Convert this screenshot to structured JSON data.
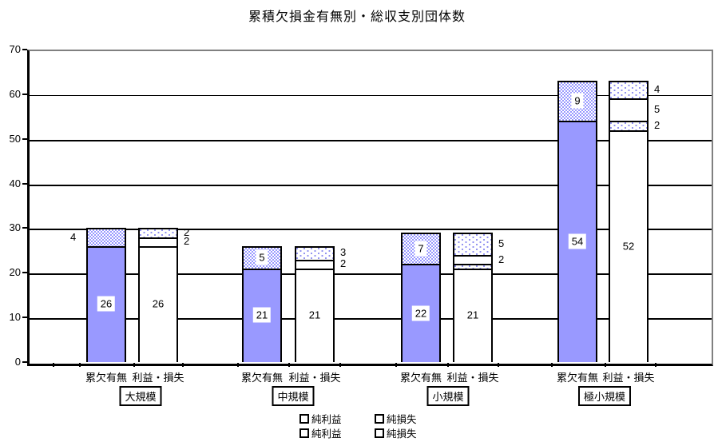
{
  "title": "累積欠損金有無別・総収支別団体数",
  "colors": {
    "bar_solid": "#9999FF",
    "pattern_accent": "#9999FF",
    "axis_line": "#000000",
    "plot_border_light": "#808080",
    "background": "#FFFFFF"
  },
  "legend": {
    "items": [
      {
        "label": "純利益",
        "key": "white-square-icon"
      },
      {
        "label": "純損失",
        "key": "white-square-icon"
      },
      {
        "label": "純利益",
        "key": "white-square-icon"
      },
      {
        "label": "純損失",
        "key": "white-square-icon"
      }
    ]
  },
  "chart_data": {
    "type": "bar",
    "stacked": true,
    "title": "累積欠損金有無別・総収支別団体数",
    "ylim": [
      0,
      70
    ],
    "y_tick_labels": [
      "0",
      "10",
      "20",
      "30",
      "40",
      "50",
      "60",
      "70"
    ],
    "grid": "horizontal",
    "legend_position": "bottom",
    "bar_category_labels": [
      "累欠有無",
      "利益・損失"
    ],
    "groups": [
      {
        "name": "大規模",
        "bars": [
          {
            "axis_label": "累欠有無",
            "total": 30,
            "segments": [
              {
                "value": 26,
                "pattern": "solid",
                "label": "26",
                "label_pos": "inside"
              },
              {
                "value": 4,
                "pattern": "hatch",
                "label": "4",
                "label_pos": "left"
              }
            ]
          },
          {
            "axis_label": "利益・損失",
            "total": 30,
            "segments": [
              {
                "value": 26,
                "pattern": "white",
                "label": "26",
                "label_pos": "inside"
              },
              {
                "value": 0,
                "pattern": "dots"
              },
              {
                "value": 2,
                "pattern": "white",
                "label": "2",
                "label_pos": "right"
              },
              {
                "value": 2,
                "pattern": "dots",
                "label": "2",
                "label_pos": "right"
              }
            ]
          }
        ]
      },
      {
        "name": "中規模",
        "bars": [
          {
            "axis_label": "累欠有無",
            "total": 26,
            "segments": [
              {
                "value": 21,
                "pattern": "solid",
                "label": "21",
                "label_pos": "inside"
              },
              {
                "value": 5,
                "pattern": "hatch",
                "label": "5",
                "label_pos": "inside"
              }
            ]
          },
          {
            "axis_label": "利益・損失",
            "total": 26,
            "segments": [
              {
                "value": 21,
                "pattern": "white",
                "label": "21",
                "label_pos": "inside"
              },
              {
                "value": 0,
                "pattern": "dots"
              },
              {
                "value": 2,
                "pattern": "white",
                "label": "2",
                "label_pos": "right"
              },
              {
                "value": 3,
                "pattern": "dots",
                "label": "3",
                "label_pos": "right"
              }
            ]
          }
        ]
      },
      {
        "name": "小規模",
        "bars": [
          {
            "axis_label": "累欠有無",
            "total": 29,
            "segments": [
              {
                "value": 22,
                "pattern": "solid",
                "label": "22",
                "label_pos": "inside"
              },
              {
                "value": 7,
                "pattern": "hatch",
                "label": "7",
                "label_pos": "inside"
              }
            ]
          },
          {
            "axis_label": "利益・損失",
            "total": 29,
            "segments": [
              {
                "value": 21,
                "pattern": "white",
                "label": "21",
                "label_pos": "inside"
              },
              {
                "value": 1,
                "pattern": "dots"
              },
              {
                "value": 2,
                "pattern": "white",
                "label": "2",
                "label_pos": "right"
              },
              {
                "value": 5,
                "pattern": "dots",
                "label": "5",
                "label_pos": "right"
              }
            ]
          }
        ]
      },
      {
        "name": "極小規模",
        "bars": [
          {
            "axis_label": "累欠有無",
            "total": 63,
            "segments": [
              {
                "value": 54,
                "pattern": "solid",
                "label": "54",
                "label_pos": "inside"
              },
              {
                "value": 9,
                "pattern": "hatch",
                "label": "9",
                "label_pos": "inside"
              }
            ]
          },
          {
            "axis_label": "利益・損失",
            "total": 63,
            "segments": [
              {
                "value": 52,
                "pattern": "white",
                "label": "52",
                "label_pos": "inside"
              },
              {
                "value": 2,
                "pattern": "dots",
                "label": "2",
                "label_pos": "right"
              },
              {
                "value": 5,
                "pattern": "white",
                "label": "5",
                "label_pos": "right"
              },
              {
                "value": 4,
                "pattern": "dots",
                "label": "4",
                "label_pos": "right"
              }
            ]
          }
        ]
      }
    ]
  }
}
